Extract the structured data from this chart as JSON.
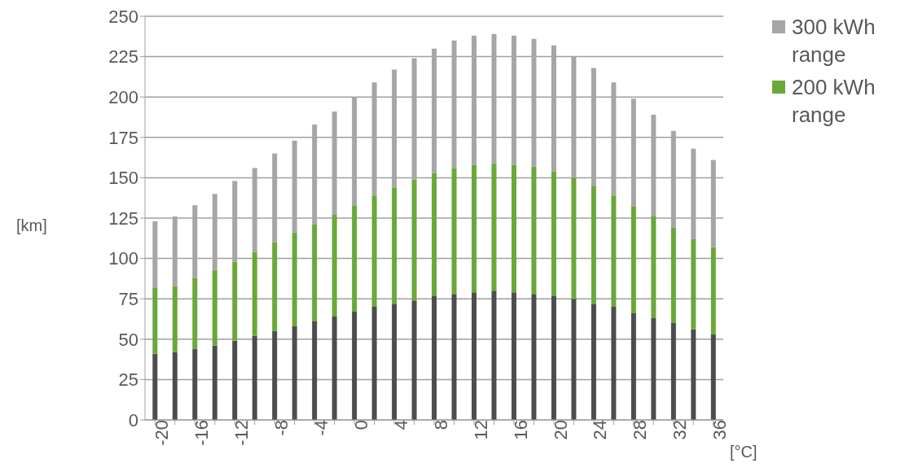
{
  "chart_data": {
    "type": "bar",
    "stacked": true,
    "xlabel": "[°C]",
    "ylabel": "[km]",
    "categories": [
      "-20",
      null,
      "-16",
      null,
      "-12",
      null,
      "-8",
      null,
      "-4",
      null,
      "0",
      null,
      "4",
      null,
      "8",
      null,
      "12",
      null,
      "16",
      null,
      "20",
      null,
      "24",
      null,
      "28",
      null,
      "32",
      null,
      "36"
    ],
    "series": [
      {
        "color": "#4d4d4d",
        "values": [
          41,
          42,
          44,
          46,
          49,
          52,
          55,
          58,
          61,
          64,
          67,
          70,
          72,
          74,
          77,
          78,
          79,
          80,
          79,
          78,
          77,
          75,
          72,
          70,
          66,
          63,
          60,
          56,
          53
        ]
      },
      {
        "name": "200 kWh range",
        "color": "#6aa83a",
        "values": [
          41,
          41,
          44,
          47,
          49,
          52,
          55,
          58,
          60,
          63,
          66,
          69,
          72,
          75,
          76,
          78,
          79,
          79,
          79,
          79,
          77,
          75,
          73,
          69,
          66,
          63,
          59,
          56,
          54
        ]
      },
      {
        "name": "300 kWh range",
        "color": "#a6a6a6",
        "values": [
          41,
          43,
          45,
          47,
          50,
          52,
          55,
          57,
          62,
          64,
          67,
          70,
          73,
          75,
          77,
          79,
          80,
          80,
          80,
          79,
          78,
          75,
          73,
          70,
          67,
          63,
          60,
          56,
          54
        ]
      }
    ],
    "ylim": [
      0,
      250
    ],
    "yticks": [
      0,
      25,
      50,
      75,
      100,
      125,
      150,
      175,
      200,
      225,
      250
    ],
    "grid": "y",
    "legend": "top right"
  }
}
